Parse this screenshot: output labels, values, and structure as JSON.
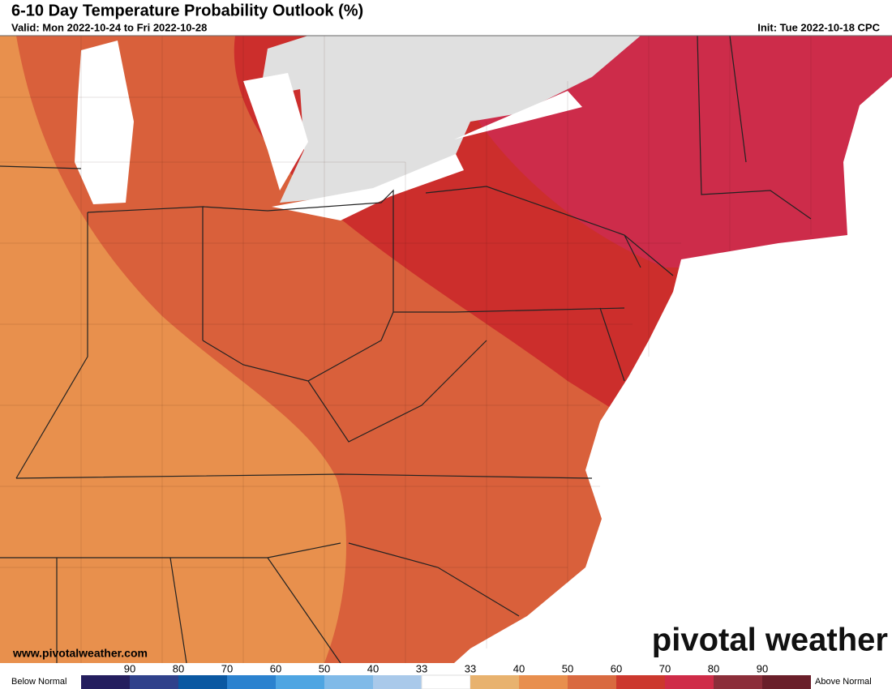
{
  "header": {
    "title": "6-10 Day Temperature Probability Outlook (%)",
    "valid": "Valid: Mon 2022-10-24 to Fri 2022-10-28",
    "init": "Init: Tue 2022-10-18 CPC"
  },
  "watermark": {
    "url": "www.pivotalweather.com",
    "logo": "pivotal weather"
  },
  "legend": {
    "below": "Below Normal",
    "above": "Above Normal",
    "labels": [
      "90",
      "80",
      "70",
      "60",
      "50",
      "40",
      "33",
      "33",
      "40",
      "50",
      "60",
      "70",
      "80",
      "90"
    ],
    "colors": [
      "#1d1646",
      "#241e5e",
      "#2f418b",
      "#0a58a2",
      "#2b82cf",
      "#4ea5e2",
      "#80bae8",
      "#a9c9ea",
      "#ffffff",
      "#e8b26e",
      "#e88f4e",
      "#d96a40",
      "#cc382e",
      "#cf2c48",
      "#8c2e3a",
      "#6a1f2a"
    ]
  }
}
